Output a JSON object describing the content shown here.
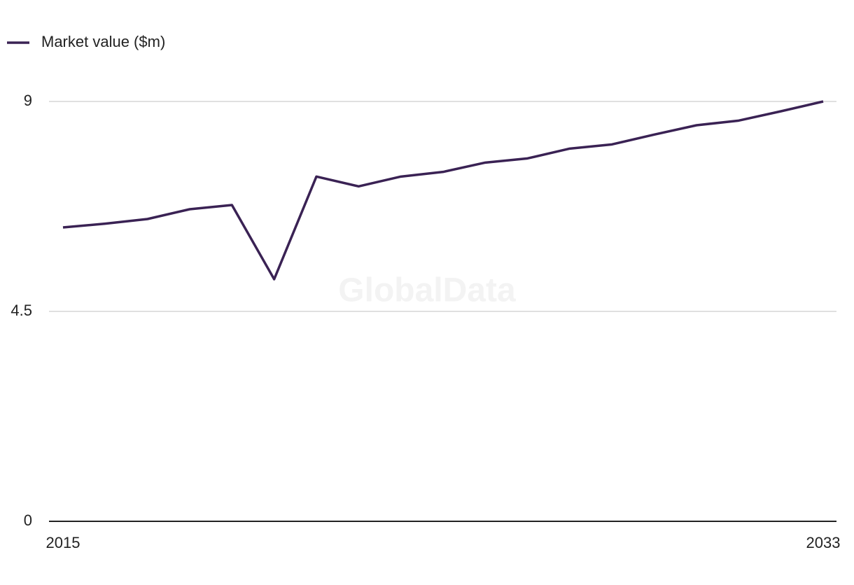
{
  "chart_data": {
    "type": "line",
    "watermark": "GlobalData",
    "x": [
      2015,
      2016,
      2017,
      2018,
      2019,
      2020,
      2021,
      2022,
      2023,
      2024,
      2025,
      2026,
      2027,
      2028,
      2029,
      2030,
      2031,
      2032,
      2033
    ],
    "series": [
      {
        "name": "Market value ($m)",
        "color": "#3a2254",
        "values": [
          6.3,
          6.38,
          6.48,
          6.69,
          6.78,
          5.19,
          7.39,
          7.18,
          7.39,
          7.49,
          7.69,
          7.78,
          7.99,
          8.08,
          8.29,
          8.49,
          8.59,
          8.79,
          9.0
        ]
      }
    ],
    "xlim": [
      2015,
      2033
    ],
    "xticks": [
      2015,
      2033
    ],
    "ylim": [
      0,
      9
    ],
    "yticks": [
      0,
      4.5,
      9
    ],
    "grid": true,
    "legend": "top-left"
  }
}
